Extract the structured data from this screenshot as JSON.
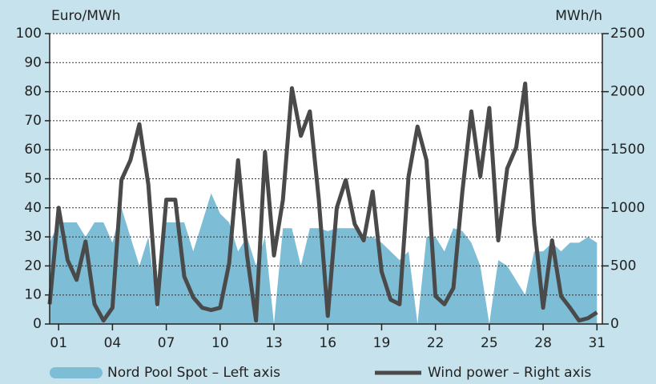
{
  "chart_data": {
    "type": "area-line",
    "y_label": "Euro/MWh",
    "y2_label": "MWh/h",
    "xlim": [
      0.5,
      31.3
    ],
    "xticks": [
      {
        "value": 1,
        "label": "01"
      },
      {
        "value": 4,
        "label": "04"
      },
      {
        "value": 7,
        "label": "07"
      },
      {
        "value": 10,
        "label": "10"
      },
      {
        "value": 13,
        "label": "13"
      },
      {
        "value": 16,
        "label": "16"
      },
      {
        "value": 19,
        "label": "19"
      },
      {
        "value": 22,
        "label": "22"
      },
      {
        "value": 25,
        "label": "25"
      },
      {
        "value": 28,
        "label": "28"
      },
      {
        "value": 31,
        "label": "31"
      }
    ],
    "ylim": [
      0,
      100
    ],
    "yticks": [
      0,
      10,
      20,
      30,
      40,
      50,
      60,
      70,
      80,
      90,
      100
    ],
    "y2lim": [
      0,
      2500
    ],
    "y2ticks": [
      0,
      500,
      1000,
      1500,
      2000,
      2500
    ],
    "grid": true,
    "x": [
      0.5,
      1,
      1.5,
      2,
      2.5,
      3,
      3.5,
      4,
      4.5,
      5,
      5.5,
      6,
      6.5,
      7,
      7.5,
      8,
      8.5,
      9,
      9.5,
      10,
      10.5,
      11,
      11.5,
      12,
      12.5,
      13,
      13.5,
      14,
      14.5,
      15,
      15.5,
      16,
      16.5,
      17,
      17.5,
      18,
      18.5,
      19,
      19.5,
      20,
      20.5,
      21,
      21.5,
      22,
      22.5,
      23,
      23.5,
      24,
      24.5,
      25,
      25.5,
      26,
      26.5,
      27,
      27.5,
      28,
      28.5,
      29,
      29.5,
      30,
      30.5,
      31
    ],
    "series": [
      {
        "name": "Nord Pool Spot – Left axis",
        "kind": "area",
        "color": "#7dbdd5",
        "values": [
          28,
          35,
          35,
          35,
          30,
          35,
          35,
          28,
          40,
          30,
          20,
          30,
          5,
          35,
          35,
          35,
          25,
          35,
          45,
          38,
          35,
          25,
          30,
          20,
          30,
          0,
          33,
          33,
          20,
          33,
          33,
          32,
          33,
          33,
          33,
          30,
          30,
          28,
          25,
          22,
          25,
          0,
          30,
          30,
          25,
          33,
          32,
          28,
          20,
          0,
          22,
          20,
          15,
          10,
          25,
          25,
          28,
          25,
          28,
          28,
          30,
          28
        ]
      },
      {
        "name": "Wind power – Right axis",
        "kind": "line",
        "axis": "y2",
        "color": "#4a4a4a",
        "values": [
          170,
          1000,
          550,
          380,
          710,
          170,
          30,
          140,
          1240,
          1410,
          1720,
          1200,
          170,
          1070,
          1070,
          410,
          230,
          140,
          120,
          140,
          520,
          1410,
          590,
          30,
          1480,
          590,
          1070,
          2030,
          1620,
          1830,
          1070,
          70,
          1000,
          1240,
          860,
          720,
          1140,
          450,
          210,
          170,
          1270,
          1700,
          1410,
          240,
          170,
          310,
          1140,
          1830,
          1270,
          1860,
          720,
          1340,
          1520,
          2070,
          860,
          140,
          720,
          240,
          140,
          30,
          50,
          100
        ]
      }
    ]
  }
}
